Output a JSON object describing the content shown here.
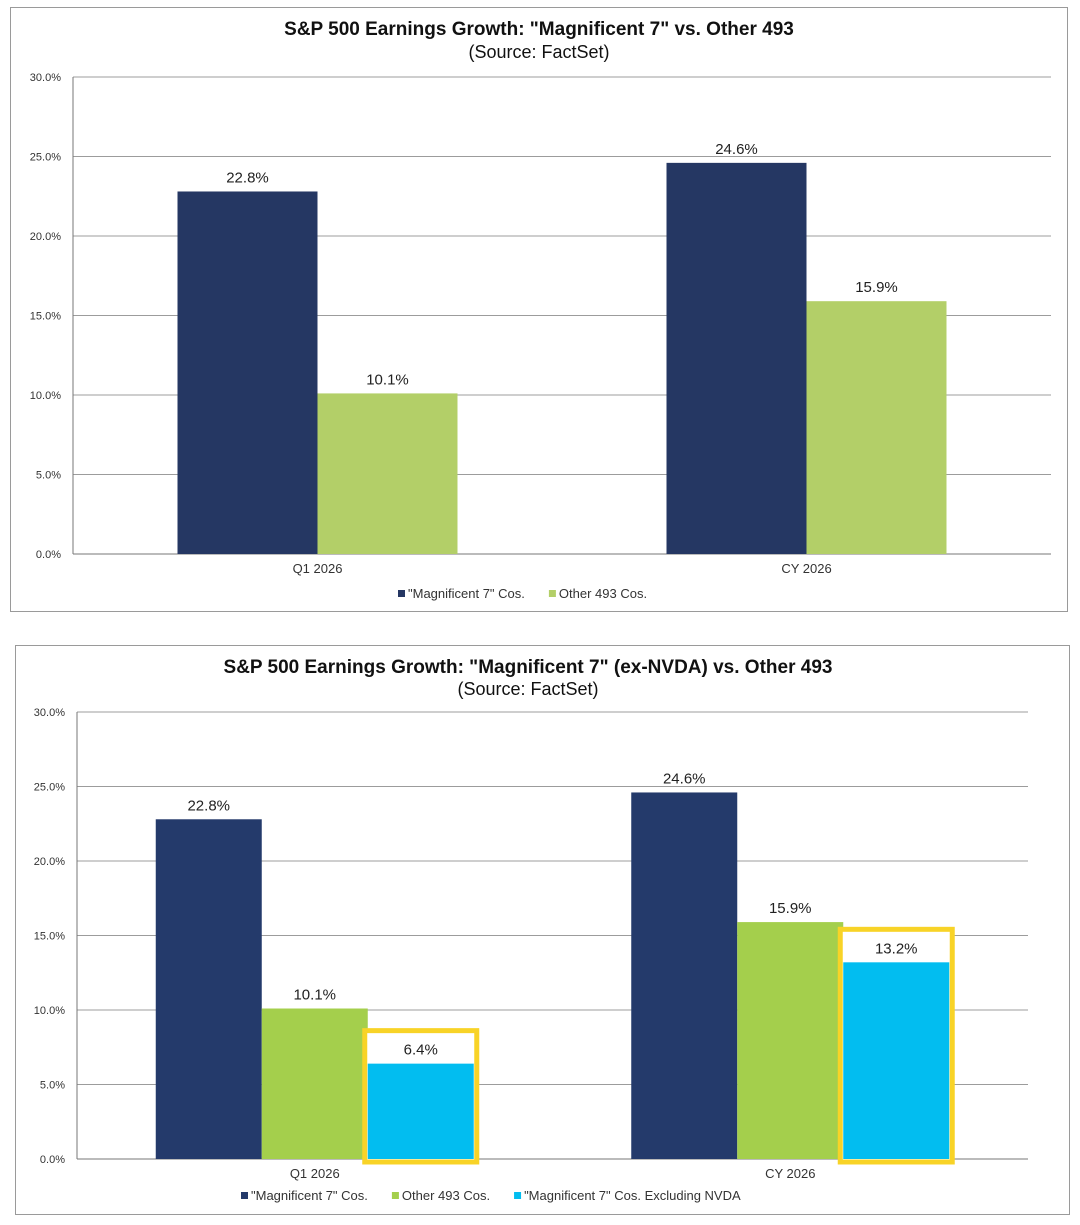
{
  "chart_data": [
    {
      "type": "bar",
      "title": "S&P 500 Earnings Growth: \"Magnificent 7\" vs. Other 493",
      "subtitle": "(Source: FactSet)",
      "categories": [
        "Q1 2026",
        "CY 2026"
      ],
      "ylim": [
        0,
        30
      ],
      "yticks": [
        "0.0%",
        "5.0%",
        "10.0%",
        "15.0%",
        "20.0%",
        "25.0%",
        "30.0%"
      ],
      "series": [
        {
          "name": "\"Magnificent 7\" Cos.",
          "color": "#253763",
          "values": [
            22.8,
            24.6
          ],
          "labels": [
            "22.8%",
            "24.6%"
          ]
        },
        {
          "name": "Other 493 Cos.",
          "color": "#b3cf68",
          "values": [
            10.1,
            15.9
          ],
          "labels": [
            "10.1%",
            "15.9%"
          ]
        }
      ],
      "legend_position": "bottom"
    },
    {
      "type": "bar",
      "title": "S&P 500 Earnings Growth: \"Magnificent 7\" (ex-NVDA)  vs. Other 493",
      "subtitle": "(Source: FactSet)",
      "categories": [
        "Q1 2026",
        "CY 2026"
      ],
      "ylim": [
        0,
        30
      ],
      "yticks": [
        "0.0%",
        "5.0%",
        "10.0%",
        "15.0%",
        "20.0%",
        "25.0%",
        "30.0%"
      ],
      "series": [
        {
          "name": "\"Magnificent 7\" Cos.",
          "color": "#243a6b",
          "values": [
            22.8,
            24.6
          ],
          "labels": [
            "22.8%",
            "24.6%"
          ]
        },
        {
          "name": "Other 493 Cos.",
          "color": "#a4cf4c",
          "values": [
            10.1,
            15.9
          ],
          "labels": [
            "10.1%",
            "15.9%"
          ]
        },
        {
          "name": "\"Magnificent 7\" Cos. Excluding NVDA",
          "color": "#02bdf0",
          "values": [
            6.4,
            13.2
          ],
          "labels": [
            "6.4%",
            "13.2%"
          ],
          "highlighted": true
        }
      ],
      "highlight_color": "#f8d327",
      "legend_position": "bottom"
    }
  ]
}
